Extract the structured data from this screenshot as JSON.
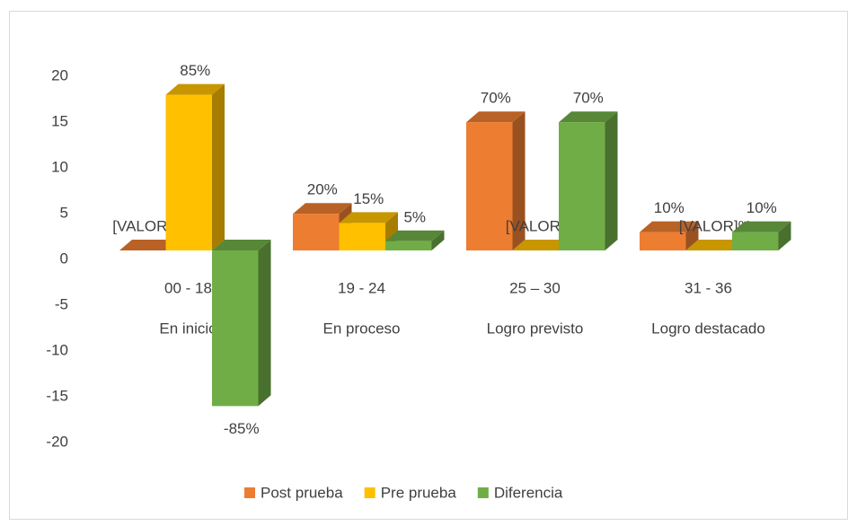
{
  "chart_data": {
    "type": "bar3d",
    "categories": [
      "00 - 18",
      "19 - 24",
      "25 – 30",
      "31 - 36"
    ],
    "subcategories": [
      "En inicio",
      "En proceso",
      "Logro previsto",
      "Logro destacado"
    ],
    "series": [
      {
        "name": "Post prueba",
        "color": "#ED7D31",
        "values": [
          0,
          4,
          14,
          2
        ],
        "value_labels": [
          "[VALOR]%",
          "20%",
          "70%",
          "10%"
        ]
      },
      {
        "name": "Pre prueba",
        "color": "#FFC000",
        "values": [
          17,
          3,
          0,
          0
        ],
        "value_labels": [
          "85%",
          "15%",
          "[VALOR]%",
          "[VALOR]%"
        ]
      },
      {
        "name": "Diferencia",
        "color": "#70AD47",
        "values": [
          -17,
          1,
          14,
          2
        ],
        "value_labels": [
          "-85%",
          "5%",
          "70%",
          "10%"
        ]
      }
    ],
    "ylim": [
      -20,
      20
    ],
    "yticks": [
      -20,
      -15,
      -10,
      -5,
      0,
      5,
      10,
      15,
      20
    ],
    "legend": "bottom"
  }
}
